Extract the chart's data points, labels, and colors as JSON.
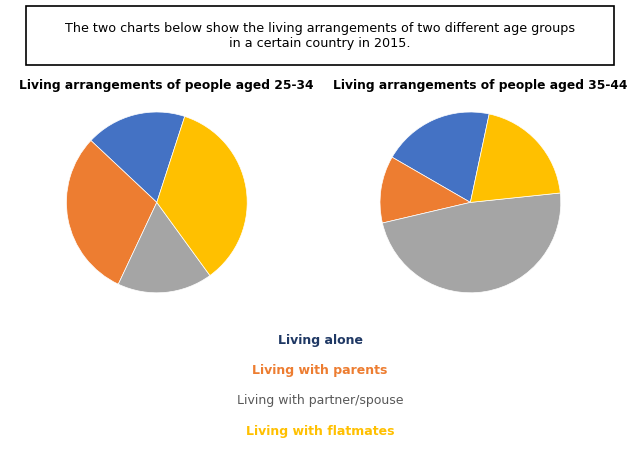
{
  "title": "The two charts below show the living arrangements of two different age groups\nin a certain country in 2015.",
  "chart1_title": "Living arrangements of people aged 25-34",
  "chart2_title": "Living arrangements of people aged 35-44",
  "chart1_values": [
    18,
    30,
    17,
    35
  ],
  "chart2_values": [
    20,
    12,
    48,
    20
  ],
  "colors": [
    "#4472C4",
    "#ED7D31",
    "#A5A5A5",
    "#FFC000"
  ],
  "legend_labels": [
    "Living alone",
    "Living with parents",
    "Living with partner/spouse",
    "Living with flatmates"
  ],
  "legend_font_colors": [
    "#1F3864",
    "#ED7D31",
    "#595959",
    "#FFC000"
  ],
  "legend_font_weights": [
    "bold",
    "bold",
    "normal",
    "bold"
  ],
  "startangle1": 72,
  "startangle2": 78,
  "background_color": "#FFFFFF"
}
